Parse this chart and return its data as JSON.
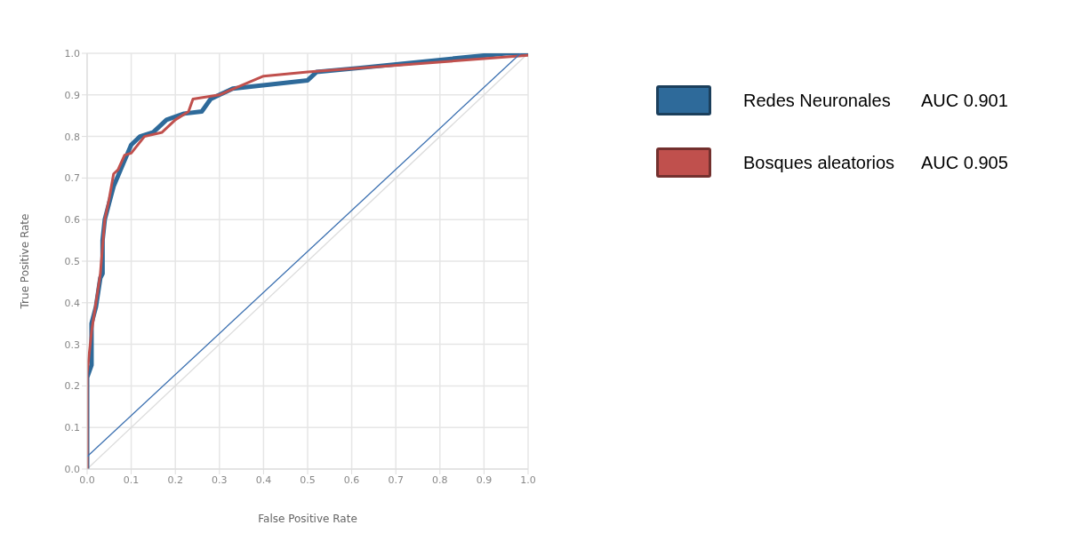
{
  "chart_data": {
    "type": "line",
    "xlabel": "False Positive Rate",
    "ylabel": "True Positive Rate",
    "xlim": [
      0,
      1
    ],
    "ylim": [
      0,
      1
    ],
    "xticks": [
      {
        "value": 0,
        "label": "0.0"
      },
      {
        "value": 0.1,
        "label": "0.1"
      },
      {
        "value": 0.2,
        "label": "0.2"
      },
      {
        "value": 0.3,
        "label": "0.3"
      },
      {
        "value": 0.4,
        "label": "0.4"
      },
      {
        "value": 0.5,
        "label": "0.5"
      },
      {
        "value": 0.6,
        "label": "0.6"
      },
      {
        "value": 0.7,
        "label": "0.7"
      },
      {
        "value": 0.8,
        "label": "0.8"
      },
      {
        "value": 0.9,
        "label": "0.9"
      },
      {
        "value": 1,
        "label": "1.0"
      }
    ],
    "yticks": [
      {
        "value": 0,
        "label": "0.0"
      },
      0.1,
      0.2,
      0.3,
      0.4,
      0.5,
      0.6,
      0.7,
      0.8,
      0.9,
      {
        "value": 1,
        "label": "1.0"
      }
    ],
    "grid": true,
    "legend": "top right",
    "marker": "none",
    "line_style": "solid",
    "annotations": [
      "AUC 0.901",
      "AUC 0.905"
    ],
    "series": [
      {
        "color": "#dcdcdc",
        "x": [
          0,
          1
        ],
        "values": [
          0,
          1
        ]
      },
      {
        "name": "Redes Neuronales",
        "color": "#2e6a9a",
        "x": [
          0,
          0,
          0.01,
          0.01,
          0.02,
          0.03,
          0.035,
          0.035,
          0.04,
          0.05,
          0.06,
          0.08,
          0.1,
          0.12,
          0.15,
          0.18,
          0.22,
          0.26,
          0.28,
          0.3,
          0.33,
          0.5,
          0.52,
          0.62,
          0.95,
          1
        ],
        "values": [
          0,
          0.22,
          0.25,
          0.35,
          0.39,
          0.46,
          0.47,
          0.55,
          0.6,
          0.64,
          0.68,
          0.73,
          0.78,
          0.8,
          0.81,
          0.84,
          0.855,
          0.86,
          0.89,
          0.9,
          0.915,
          0.935,
          0.955,
          0.965,
          1,
          1
        ]
      },
      {
        "name": "Bosques aleatorios",
        "color": "#c0504d",
        "x": [
          0,
          0,
          0.01,
          0.02,
          0.03,
          0.04,
          0.05,
          0.06,
          0.07,
          0.085,
          0.1,
          0.13,
          0.17,
          0.2,
          0.23,
          0.24,
          0.3,
          0.4,
          0.5,
          1
        ],
        "values": [
          0,
          0.23,
          0.33,
          0.4,
          0.47,
          0.6,
          0.65,
          0.71,
          0.72,
          0.755,
          0.76,
          0.8,
          0.81,
          0.84,
          0.86,
          0.89,
          0.9,
          0.945,
          0.955,
          0.995
        ]
      },
      {
        "color": "#3a6fb0",
        "x": [
          0,
          0.983
        ],
        "values": [
          0.03,
          1
        ]
      }
    ]
  }
}
